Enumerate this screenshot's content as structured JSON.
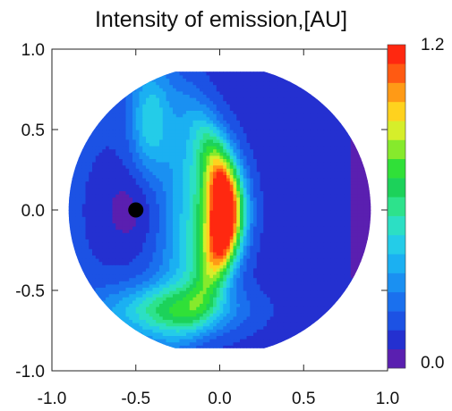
{
  "chart_data": {
    "type": "heatmap",
    "title": "Intensity of emission,[AU]",
    "xlabel": "",
    "ylabel": "",
    "xlim": [
      -1.0,
      1.0
    ],
    "ylim": [
      -1.0,
      1.0
    ],
    "x_ticks": [
      {
        "value": -1.0,
        "label": "-1.0"
      },
      {
        "value": -0.5,
        "label": "-0.5"
      },
      {
        "value": 0.0,
        "label": "0.0"
      },
      {
        "value": 0.5,
        "label": "0.5"
      },
      {
        "value": 1.0,
        "label": "1.0"
      }
    ],
    "y_ticks": [
      {
        "value": 1.0,
        "label": "1.0"
      },
      {
        "value": 0.5,
        "label": "0.5"
      },
      {
        "value": 0.0,
        "label": "0.0"
      },
      {
        "value": -0.5,
        "label": "-0.5"
      },
      {
        "value": -1.0,
        "label": "-1.0"
      }
    ],
    "grid": false,
    "colorbar": {
      "min": 0.0,
      "max": 1.2,
      "min_label": "0.0",
      "max_label": "1.2",
      "levels": 17,
      "colors": [
        "#5a1fb0",
        "#2430d0",
        "#1c52e4",
        "#1a70ee",
        "#1a90f2",
        "#1bb0f2",
        "#24cce8",
        "#2cdfc4",
        "#2de28c",
        "#1cd25a",
        "#30e038",
        "#86ea2c",
        "#d6ee2a",
        "#ffd21e",
        "#ff9a16",
        "#ff5a12",
        "#ff2810"
      ]
    },
    "domain": {
      "shape": "circle clipped by horizontal lines",
      "radius": 0.9,
      "y_clip": [
        -0.86,
        0.86
      ]
    },
    "features": {
      "hot_crescent": {
        "center_x": 0.0,
        "y_range": [
          -0.42,
          0.38
        ],
        "peak": 1.2
      },
      "marker": {
        "x": -0.5,
        "y": 0.0,
        "color": "#000000"
      }
    }
  }
}
